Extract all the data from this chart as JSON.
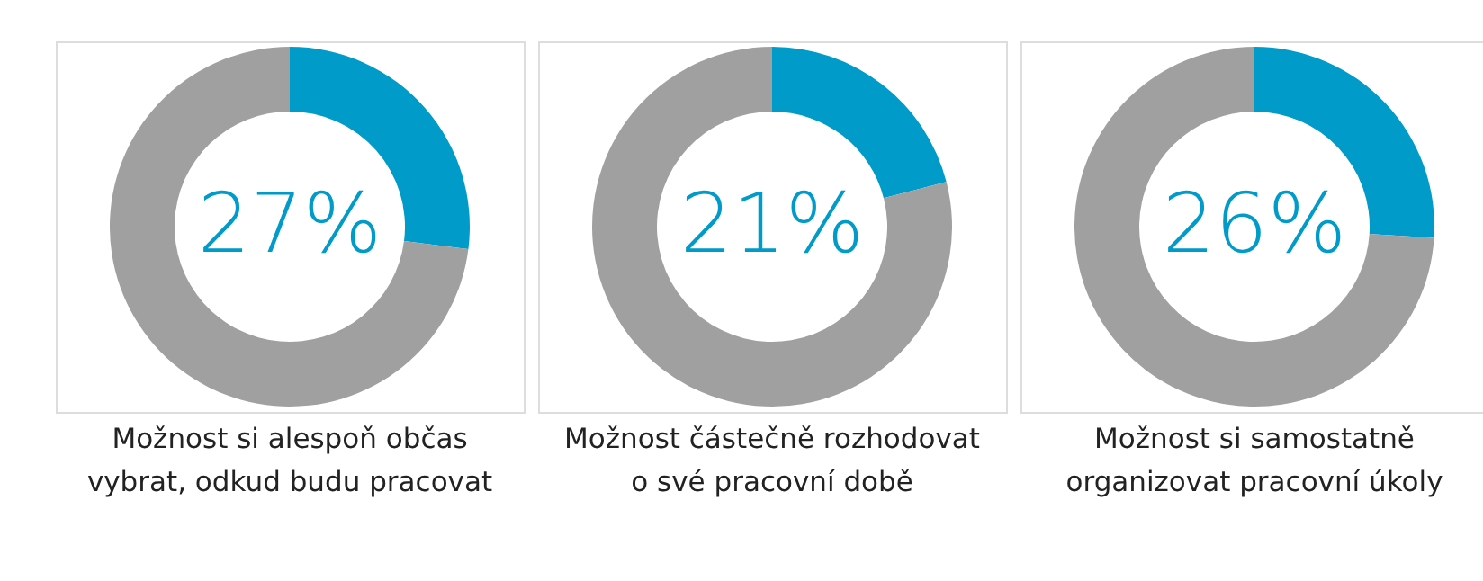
{
  "chart_data": [
    {
      "type": "donut",
      "title": "Možnost si alespoň občas\nvybrat, odkud budu pracovat",
      "categories": [
        null,
        null
      ],
      "values": [
        27,
        73
      ],
      "colors": [
        "#009bc8",
        "#a0a0a0"
      ],
      "value_labels": [
        "27%",
        null
      ]
    },
    {
      "type": "donut",
      "title": "Možnost částečně rozhodovat\no své pracovní době",
      "categories": [
        null,
        null
      ],
      "values": [
        21,
        79
      ],
      "colors": [
        "#009bc8",
        "#a0a0a0"
      ],
      "value_labels": [
        "21%",
        null
      ]
    },
    {
      "type": "donut",
      "title": "Možnost si samostatně\norganizovat pracovní úkoly",
      "categories": [
        null,
        null
      ],
      "values": [
        26,
        74
      ],
      "colors": [
        "#009bc8",
        "#a0a0a0"
      ],
      "value_labels": [
        "26%",
        null
      ]
    }
  ]
}
